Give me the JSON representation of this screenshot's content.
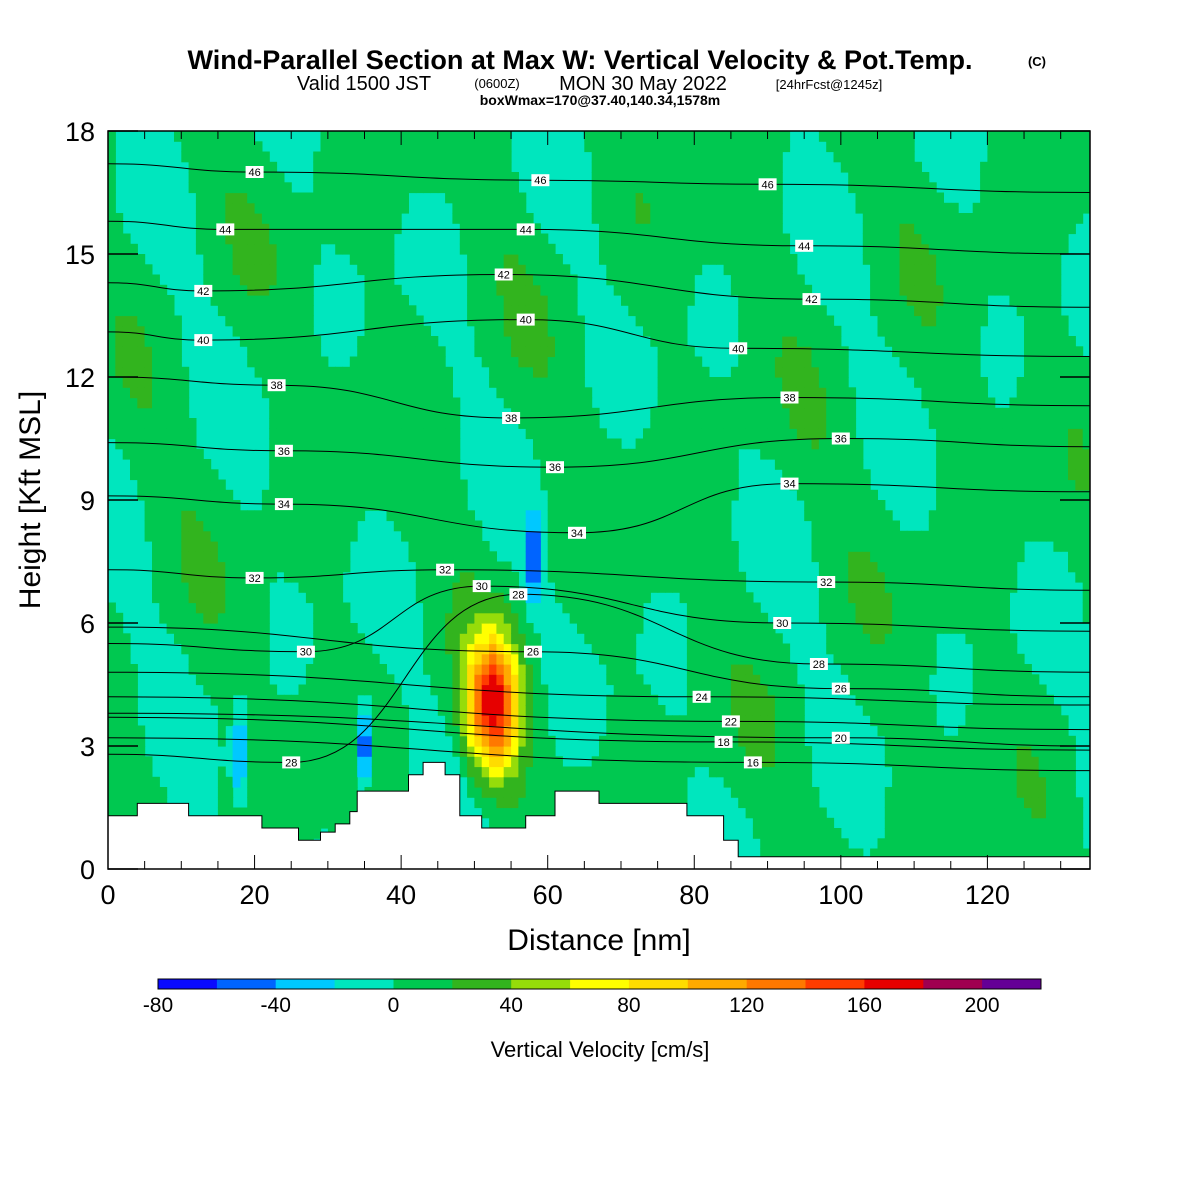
{
  "chart_data": {
    "type": "heatmap",
    "title": {
      "main": "Wind-Parallel Section at Max W: Vertical Velocity & Pot.Temp.",
      "main_suffix": "(C)",
      "valid_prefix": "Valid 1500 JST",
      "valid_utc": "(0600Z)",
      "valid_date": "MON 30 May 2022",
      "forecast": "[24hrFcst@1245z]",
      "box": "boxWmax=170@37.40,140.34,1578m"
    },
    "xlabel": "Distance [nm]",
    "ylabel": "Height [Kft MSL]",
    "xlim": [
      0,
      134
    ],
    "ylim": [
      0,
      18
    ],
    "xticks": [
      0,
      20,
      40,
      60,
      80,
      100,
      120
    ],
    "yticks": [
      0,
      3,
      6,
      9,
      12,
      15,
      18
    ],
    "colorbar": {
      "label": "Vertical Velocity [cm/s]",
      "bins": [
        -80,
        -60,
        -40,
        -20,
        0,
        20,
        40,
        60,
        80,
        100,
        120,
        140,
        160,
        180,
        200,
        220
      ],
      "colors": [
        "#0a0aff",
        "#0064ff",
        "#00c8ff",
        "#00e6be",
        "#00c850",
        "#32b41e",
        "#96dc0a",
        "#ffff00",
        "#ffdc00",
        "#ffaa00",
        "#ff7800",
        "#ff3c00",
        "#e60000",
        "#a00050",
        "#640096"
      ],
      "tick_labels": [
        "-80",
        "-40",
        "0",
        "40",
        "80",
        "120",
        "160",
        "200"
      ],
      "tick_values": [
        -80,
        -40,
        0,
        40,
        80,
        120,
        160,
        200
      ]
    },
    "contour_field": "potential temperature (C)",
    "contour_labels": [
      {
        "text": "46",
        "x": 20,
        "y": 17.0
      },
      {
        "text": "46",
        "x": 59,
        "y": 16.8
      },
      {
        "text": "46",
        "x": 90,
        "y": 16.7
      },
      {
        "text": "44",
        "x": 16,
        "y": 15.6
      },
      {
        "text": "44",
        "x": 57,
        "y": 15.6
      },
      {
        "text": "44",
        "x": 95,
        "y": 15.2
      },
      {
        "text": "42",
        "x": 13,
        "y": 14.1
      },
      {
        "text": "42",
        "x": 54,
        "y": 14.5
      },
      {
        "text": "42",
        "x": 96,
        "y": 13.9
      },
      {
        "text": "40",
        "x": 13,
        "y": 12.9
      },
      {
        "text": "40",
        "x": 57,
        "y": 13.4
      },
      {
        "text": "40",
        "x": 86,
        "y": 12.7
      },
      {
        "text": "38",
        "x": 23,
        "y": 11.8
      },
      {
        "text": "38",
        "x": 55,
        "y": 11.0
      },
      {
        "text": "38",
        "x": 93,
        "y": 11.5
      },
      {
        "text": "36",
        "x": 24,
        "y": 10.2
      },
      {
        "text": "36",
        "x": 61,
        "y": 9.8
      },
      {
        "text": "36",
        "x": 100,
        "y": 10.5
      },
      {
        "text": "34",
        "x": 24,
        "y": 8.9
      },
      {
        "text": "34",
        "x": 64,
        "y": 8.2
      },
      {
        "text": "34",
        "x": 93,
        "y": 9.4
      },
      {
        "text": "32",
        "x": 20,
        "y": 7.1
      },
      {
        "text": "32",
        "x": 46,
        "y": 7.3
      },
      {
        "text": "32",
        "x": 98,
        "y": 7.0
      },
      {
        "text": "30",
        "x": 27,
        "y": 5.3
      },
      {
        "text": "30",
        "x": 51,
        "y": 6.9
      },
      {
        "text": "30",
        "x": 92,
        "y": 6.0
      },
      {
        "text": "28",
        "x": 25,
        "y": 2.6
      },
      {
        "text": "28",
        "x": 56,
        "y": 6.7
      },
      {
        "text": "28",
        "x": 97,
        "y": 5.0
      },
      {
        "text": "26",
        "x": 58,
        "y": 5.3
      },
      {
        "text": "26",
        "x": 100,
        "y": 4.4
      },
      {
        "text": "24",
        "x": 81,
        "y": 4.2
      },
      {
        "text": "22",
        "x": 85,
        "y": 3.6
      },
      {
        "text": "20",
        "x": 100,
        "y": 3.2
      },
      {
        "text": "18",
        "x": 84,
        "y": 3.1
      },
      {
        "text": "16",
        "x": 88,
        "y": 2.6
      }
    ],
    "features": {
      "updraft_core": {
        "x": 52.5,
        "y": 4.0,
        "value_max": 170
      },
      "downdraft_cores": [
        {
          "x": 35,
          "y": 3.0,
          "value": -80
        },
        {
          "x": 18,
          "y": 2.8,
          "value": -60
        },
        {
          "x": 58,
          "y": 7.5,
          "value": -70
        }
      ],
      "terrain_profile": [
        [
          0,
          1.3
        ],
        [
          4,
          1.3
        ],
        [
          4,
          1.6
        ],
        [
          11,
          1.6
        ],
        [
          11,
          1.3
        ],
        [
          21,
          1.3
        ],
        [
          21,
          1.0
        ],
        [
          26,
          1.0
        ],
        [
          26,
          0.7
        ],
        [
          29,
          0.7
        ],
        [
          29,
          0.9
        ],
        [
          31,
          0.9
        ],
        [
          31,
          1.1
        ],
        [
          33,
          1.1
        ],
        [
          33,
          1.4
        ],
        [
          34,
          1.4
        ],
        [
          34,
          1.9
        ],
        [
          41,
          1.9
        ],
        [
          41,
          2.3
        ],
        [
          43,
          2.3
        ],
        [
          43,
          2.6
        ],
        [
          46,
          2.6
        ],
        [
          46,
          2.3
        ],
        [
          48,
          2.3
        ],
        [
          48,
          1.3
        ],
        [
          51,
          1.3
        ],
        [
          51,
          1.0
        ],
        [
          57,
          1.0
        ],
        [
          57,
          1.3
        ],
        [
          61,
          1.3
        ],
        [
          61,
          1.9
        ],
        [
          67,
          1.9
        ],
        [
          67,
          1.6
        ],
        [
          79,
          1.6
        ],
        [
          79,
          1.3
        ],
        [
          84,
          1.3
        ],
        [
          84,
          0.7
        ],
        [
          86,
          0.7
        ],
        [
          86,
          0.3
        ],
        [
          134,
          0.3
        ]
      ]
    }
  }
}
